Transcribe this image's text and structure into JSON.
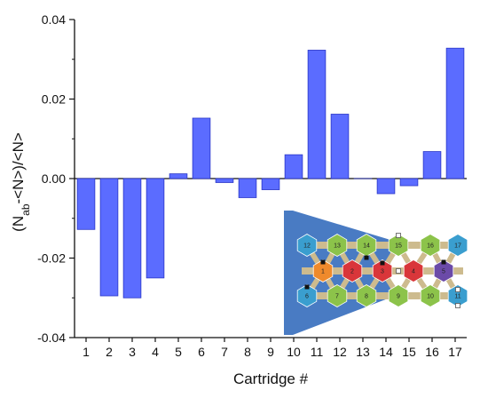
{
  "chart_data": {
    "type": "bar",
    "categories": [
      "1",
      "2",
      "3",
      "4",
      "5",
      "6",
      "7",
      "8",
      "9",
      "10",
      "11",
      "12",
      "13",
      "14",
      "15",
      "16",
      "17"
    ],
    "values": [
      -0.0128,
      -0.0295,
      -0.03,
      -0.025,
      0.0012,
      0.0152,
      -0.001,
      -0.0048,
      -0.0028,
      0.006,
      0.0323,
      0.0162,
      0.0,
      -0.0038,
      -0.0018,
      0.0068,
      0.0328
    ],
    "xlabel": "Cartridge #",
    "ylabel_parts": {
      "open": "(N",
      "sub": "ab",
      "rest": "-<N>)/<N>"
    },
    "ylim": [
      -0.04,
      0.04
    ],
    "yticks": [
      -0.04,
      -0.02,
      0.0,
      0.02,
      0.04
    ],
    "ytick_labels": [
      "-0.04",
      "-0.02",
      "0.00",
      "0.02",
      "0.04"
    ],
    "grid": false,
    "bar_color": "#5b6cff",
    "bar_edge_color": "#2a36c8"
  },
  "inset": {
    "top_row": [
      "12",
      "13",
      "14",
      "15",
      "16",
      "17"
    ],
    "middle_row": [
      "1",
      "2",
      "3",
      "4",
      "5"
    ],
    "bottom_row": [
      "6",
      "7",
      "8",
      "9",
      "10",
      "11"
    ],
    "colors": {
      "blue": "#3a9ecf",
      "green": "#8cc34a",
      "orange": "#ef8a2c",
      "red": "#d9363a",
      "purple": "#6b4aa8",
      "funnel": "#3f74c0",
      "frame": "#cdbb8e"
    }
  }
}
